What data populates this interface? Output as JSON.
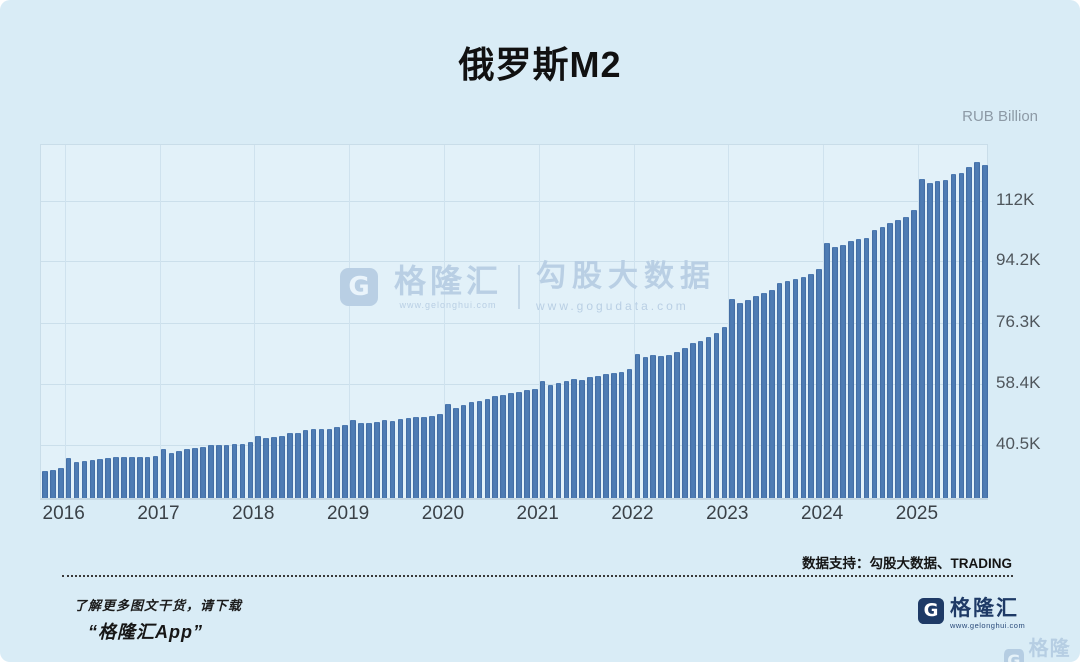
{
  "page": {
    "title": "俄罗斯M2",
    "unit_label": "RUB Billion"
  },
  "watermark_center": {
    "brand_name": "格隆汇",
    "brand_url": "www.gelonghui.com",
    "partner_name": "勾股大数据",
    "partner_url": "www.gogudata.com"
  },
  "footer": {
    "support_text": "数据支持：勾股大数据、TRADING",
    "promo_line1": "了解更多图文干货，请下载",
    "promo_line2": "“格隆汇App”",
    "brand_name": "格隆汇",
    "brand_url": "www.gelonghui.com",
    "corner_watermark_name": "格隆汇"
  },
  "colors": {
    "background": "#d9ecf6",
    "plot_background": "#e2f1f9",
    "bar": "#4a77ae",
    "gridline": "#cbdfeb",
    "brand_navy": "#1e3a66",
    "watermark_blue": "#b9cfe4"
  },
  "chart_data": {
    "type": "bar",
    "title": "俄罗斯M2",
    "ylabel": "RUB Billion",
    "frequency": "monthly",
    "x_start": "2015-10",
    "x_tick_labels": [
      "2016",
      "2017",
      "2018",
      "2019",
      "2020",
      "2021",
      "2022",
      "2023",
      "2024",
      "2025"
    ],
    "x_tick_month_indices": [
      3,
      15,
      27,
      39,
      51,
      63,
      75,
      87,
      99,
      111
    ],
    "y_tick_labels": [
      "40.5K",
      "58.4K",
      "76.3K",
      "94.2K",
      "112K"
    ],
    "y_tick_values": [
      40.5,
      58.4,
      76.3,
      94.2,
      112
    ],
    "y_axis_min": 24.2,
    "y_axis_max": 128.2,
    "grid": true,
    "legend": false,
    "values_unit": "thousand billion RUB",
    "series": [
      {
        "name": "俄罗斯M2",
        "values": [
          32.1,
          32.4,
          33.0,
          35.8,
          34.7,
          35.0,
          35.2,
          35.7,
          35.8,
          36.1,
          36.3,
          36.2,
          36.1,
          36.3,
          36.4,
          38.4,
          37.4,
          38.0,
          38.6,
          38.7,
          39.0,
          39.6,
          39.7,
          39.8,
          40.0,
          40.1,
          40.7,
          42.4,
          41.6,
          41.9,
          42.4,
          43.1,
          43.3,
          44.0,
          44.4,
          44.3,
          44.3,
          44.9,
          45.4,
          47.1,
          46.0,
          46.1,
          46.4,
          46.9,
          46.7,
          47.3,
          47.5,
          47.8,
          47.8,
          48.3,
          48.7,
          51.7,
          50.6,
          51.3,
          52.3,
          52.6,
          53.1,
          53.9,
          54.3,
          55.0,
          55.3,
          55.7,
          56.2,
          58.3,
          57.3,
          57.9,
          58.3,
          58.9,
          58.8,
          59.6,
          60.0,
          60.4,
          60.8,
          61.0,
          62.0,
          66.3,
          65.3,
          66.0,
          65.6,
          66.0,
          66.8,
          68.1,
          69.6,
          70.1,
          71.3,
          72.5,
          74.2,
          82.4,
          81.1,
          82.1,
          83.1,
          84.0,
          85.1,
          86.9,
          87.7,
          88.2,
          88.7,
          89.7,
          91.1,
          98.6,
          97.4,
          98.1,
          99.2,
          100.0,
          100.3,
          102.4,
          103.4,
          104.5,
          105.5,
          106.3,
          108.3,
          117.3,
          116.2,
          116.7,
          117.0,
          118.8,
          119.3,
          120.8,
          122.3,
          121.4
        ]
      }
    ]
  }
}
